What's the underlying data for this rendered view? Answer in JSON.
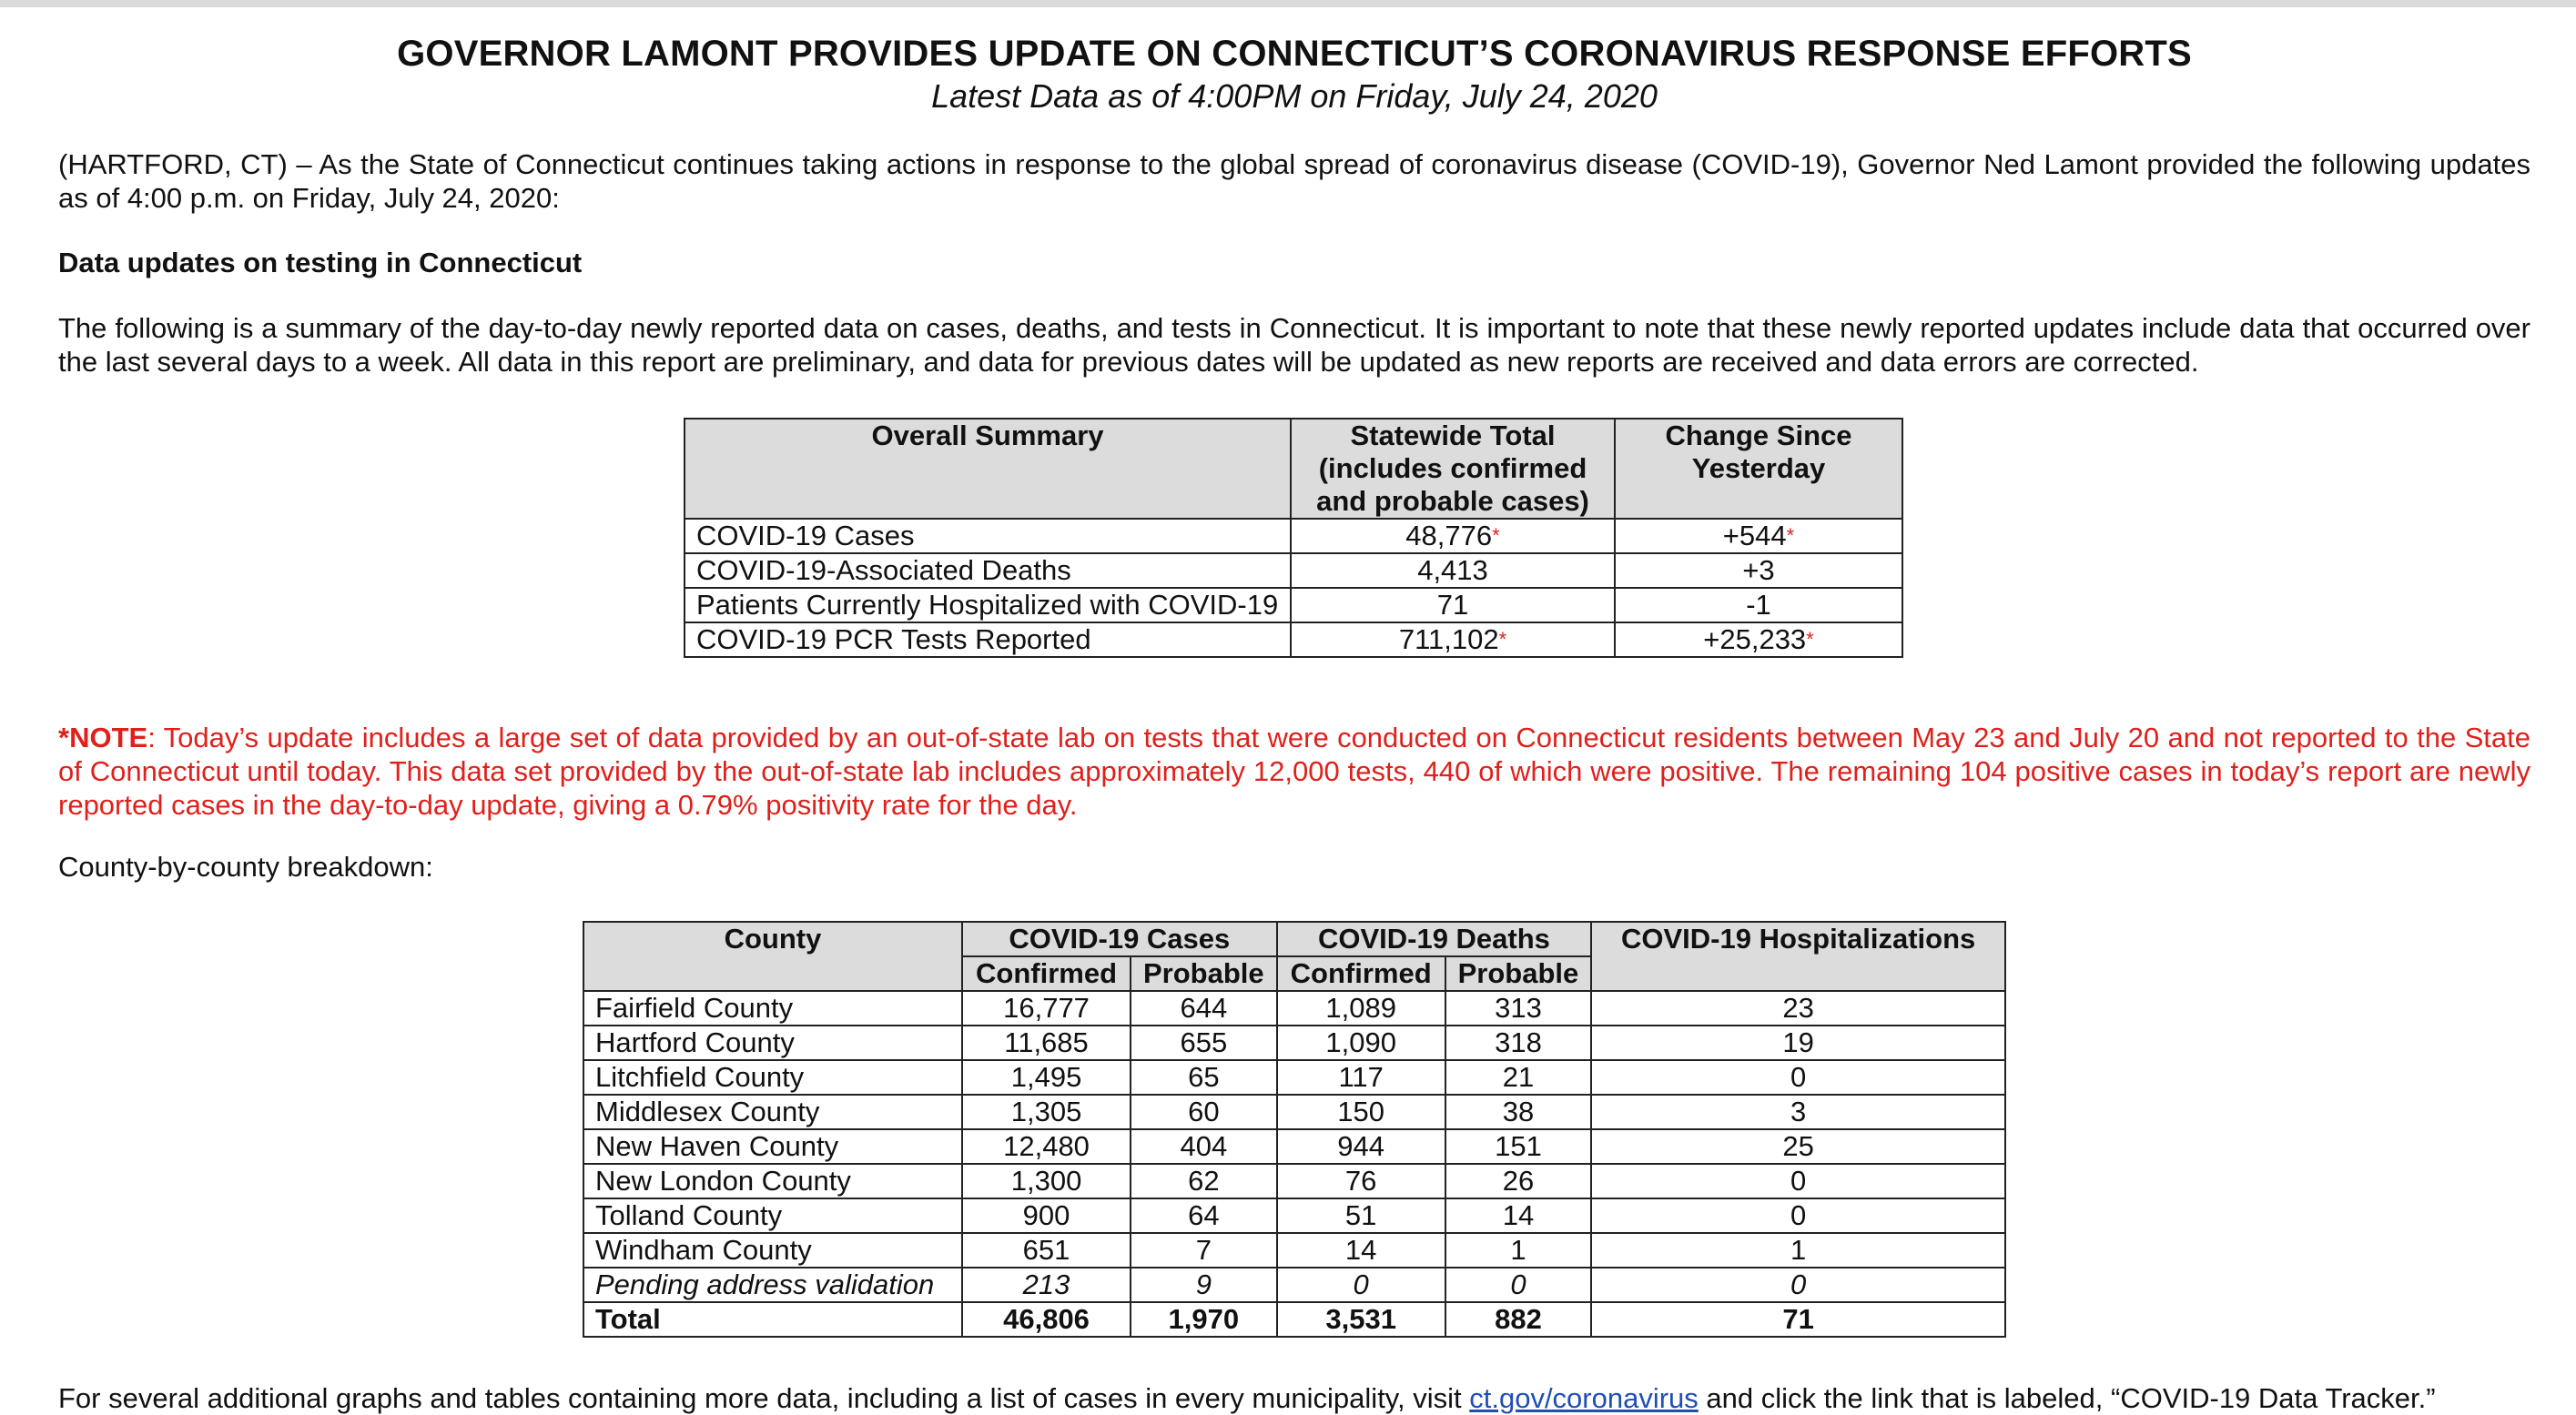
{
  "title": "GOVERNOR LAMONT PROVIDES UPDATE ON CONNECTICUT’S CORONAVIRUS RESPONSE EFFORTS",
  "subtitle": "Latest Data as of 4:00PM on Friday, July 24, 2020",
  "intro": "(HARTFORD, CT) – As the State of Connecticut continues taking actions in response to the global spread of coronavirus disease (COVID-19), Governor Ned Lamont provided the following updates as of 4:00 p.m. on Friday, July 24, 2020:",
  "section_heading": "Data updates on testing in Connecticut",
  "summary_paragraph": "The following is a summary of the day-to-day newly reported data on cases, deaths, and tests in Connecticut. It is important to note that these newly reported updates include data that occurred over the last several days to a week. All data in this report are preliminary, and data for previous dates will be updated as new reports are received and data errors are corrected.",
  "summary_table": {
    "headers": [
      "Overall Summary",
      "Statewide Total (includes confirmed and probable cases)",
      "Change Since Yesterday"
    ],
    "rows": [
      {
        "label": "COVID-19 Cases",
        "total": "48,776",
        "change": "+544",
        "total_ast": "*",
        "change_ast": "*"
      },
      {
        "label": "COVID-19-Associated Deaths",
        "total": "4,413",
        "change": "+3",
        "total_ast": "",
        "change_ast": ""
      },
      {
        "label": "Patients Currently Hospitalized with COVID-19",
        "total": "71",
        "change": "-1",
        "total_ast": "",
        "change_ast": ""
      },
      {
        "label": "COVID-19 PCR Tests Reported",
        "total": "711,102",
        "change": "+25,233",
        "total_ast": "*",
        "change_ast": "*"
      }
    ]
  },
  "note": {
    "label": "*NOTE",
    "text": ": Today’s update includes a large set of data provided by an out-of-state lab on tests that were conducted on Connecticut residents between May 23 and July 20 and not reported to the State of Connecticut until today. This data set provided by the out-of-state lab includes approximately 12,000 tests, 440 of which were positive. The remaining 104 positive cases in today’s report are newly reported cases in the day-to-day update, giving a 0.79% positivity rate for the day."
  },
  "county_label": "County-by-county breakdown:",
  "county_table": {
    "headers": {
      "county": "County",
      "cases": "COVID-19 Cases",
      "deaths": "COVID-19 Deaths",
      "hosp": "COVID-19 Hospitalizations",
      "confirmed": "Confirmed",
      "probable": "Probable"
    },
    "rows": [
      {
        "county": "Fairfield County",
        "cases_confirmed": "16,777",
        "cases_probable": "644",
        "deaths_confirmed": "1,089",
        "deaths_probable": "313",
        "hosp": "23"
      },
      {
        "county": "Hartford County",
        "cases_confirmed": "11,685",
        "cases_probable": "655",
        "deaths_confirmed": "1,090",
        "deaths_probable": "318",
        "hosp": "19"
      },
      {
        "county": "Litchfield County",
        "cases_confirmed": "1,495",
        "cases_probable": "65",
        "deaths_confirmed": "117",
        "deaths_probable": "21",
        "hosp": "0"
      },
      {
        "county": "Middlesex County",
        "cases_confirmed": "1,305",
        "cases_probable": "60",
        "deaths_confirmed": "150",
        "deaths_probable": "38",
        "hosp": "3"
      },
      {
        "county": "New Haven County",
        "cases_confirmed": "12,480",
        "cases_probable": "404",
        "deaths_confirmed": "944",
        "deaths_probable": "151",
        "hosp": "25"
      },
      {
        "county": "New London County",
        "cases_confirmed": "1,300",
        "cases_probable": "62",
        "deaths_confirmed": "76",
        "deaths_probable": "26",
        "hosp": "0"
      },
      {
        "county": "Tolland County",
        "cases_confirmed": "900",
        "cases_probable": "64",
        "deaths_confirmed": "51",
        "deaths_probable": "14",
        "hosp": "0"
      },
      {
        "county": "Windham County",
        "cases_confirmed": "651",
        "cases_probable": "7",
        "deaths_confirmed": "14",
        "deaths_probable": "1",
        "hosp": "1"
      },
      {
        "county": "Pending address validation",
        "cases_confirmed": "213",
        "cases_probable": "9",
        "deaths_confirmed": "0",
        "deaths_probable": "0",
        "hosp": "0"
      }
    ],
    "total": {
      "county": "Total",
      "cases_confirmed": "46,806",
      "cases_probable": "1,970",
      "deaths_confirmed": "3,531",
      "deaths_probable": "882",
      "hosp": "71"
    }
  },
  "footer": {
    "before": "For several additional graphs and tables containing more data, including a list of cases in every municipality, visit ",
    "link": "ct.gov/coronavirus",
    "after": " and click the link that is labeled, “COVID-19 Data Tracker.”"
  }
}
